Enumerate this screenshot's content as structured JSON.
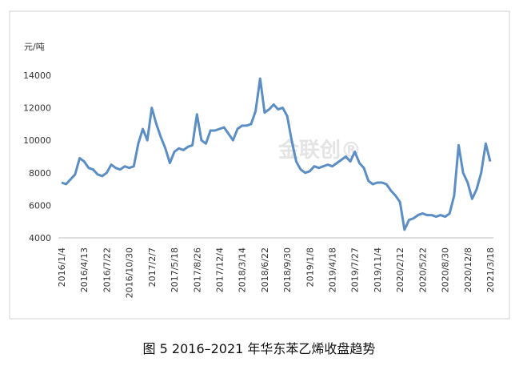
{
  "chart_data": {
    "type": "line",
    "y_label": "元/吨",
    "caption": "图 5  2016–2021 年华东苯乙烯收盘趋势",
    "watermark": "金联创®",
    "categories": [
      "2016/1/4",
      null,
      null,
      null,
      null,
      "2016/4/13",
      null,
      null,
      null,
      null,
      "2016/7/22",
      null,
      null,
      null,
      null,
      "2016/10/30",
      null,
      null,
      null,
      null,
      "2017/2/7",
      null,
      null,
      null,
      null,
      "2017/5/18",
      null,
      null,
      null,
      null,
      "2017/8/26",
      null,
      null,
      null,
      null,
      "2017/12/4",
      null,
      null,
      null,
      null,
      "2018/3/14",
      null,
      null,
      null,
      null,
      "2018/6/22",
      null,
      null,
      null,
      null,
      "2018/9/30",
      null,
      null,
      null,
      null,
      "2019/1/8",
      null,
      null,
      null,
      null,
      "2019/4/18",
      null,
      null,
      null,
      null,
      "2019/7/27",
      null,
      null,
      null,
      null,
      "2019/11/4",
      null,
      null,
      null,
      null,
      "2020/2/12",
      null,
      null,
      null,
      null,
      "2020/5/22",
      null,
      null,
      null,
      null,
      "2020/8/30",
      null,
      null,
      null,
      null,
      "2020/12/8",
      null,
      null,
      null,
      null,
      "2021/3/18"
    ],
    "series": [
      {
        "name": "华东苯乙烯",
        "color": "#5b8ec4",
        "values": [
          7400,
          7300,
          7600,
          7900,
          8900,
          8700,
          8300,
          8200,
          7900,
          7800,
          8000,
          8500,
          8300,
          8200,
          8400,
          8300,
          8400,
          9800,
          10700,
          10000,
          12000,
          11000,
          10200,
          9500,
          8600,
          9300,
          9500,
          9400,
          9600,
          9700,
          11600,
          10000,
          9800,
          10600,
          10600,
          10700,
          10800,
          10400,
          10000,
          10700,
          10900,
          10900,
          11000,
          11800,
          13800,
          11700,
          11900,
          12200,
          11900,
          12000,
          11500,
          10000,
          8700,
          8200,
          8000,
          8100,
          8400,
          8300,
          8400,
          8500,
          8400,
          8600,
          8800,
          9000,
          8700,
          9300,
          8600,
          8300,
          7500,
          7300,
          7400,
          7400,
          7300,
          6900,
          6600,
          6200,
          4500,
          5100,
          5200,
          5400,
          5500,
          5400,
          5400,
          5300,
          5400,
          5300,
          5500,
          6600,
          9700,
          8000,
          7400,
          6400,
          7000,
          8000,
          9800,
          8700
        ]
      }
    ],
    "ylim": [
      4000,
      14000
    ],
    "yticks": [
      4000,
      6000,
      8000,
      10000,
      12000,
      14000
    ]
  }
}
